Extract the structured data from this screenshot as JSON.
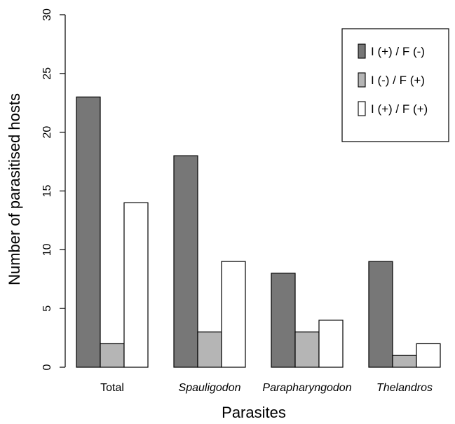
{
  "chart_data": {
    "type": "bar",
    "title": "",
    "xlabel": "Parasites",
    "ylabel": "Number of parasitised hosts",
    "ylim": [
      0,
      30
    ],
    "yticks": [
      0,
      5,
      10,
      15,
      20,
      25,
      30
    ],
    "categories": [
      "Total",
      "Spauligodon",
      "Parapharyngodon",
      "Thelandros"
    ],
    "category_italic": [
      false,
      true,
      true,
      true
    ],
    "series": [
      {
        "name": "I (+) / F (-)",
        "values": [
          23,
          18,
          8,
          9
        ],
        "color": "#777777"
      },
      {
        "name": "I (-) / F (+)",
        "values": [
          2,
          3,
          3,
          1
        ],
        "color": "#b5b5b5"
      },
      {
        "name": "I (+) / F (+)",
        "values": [
          14,
          9,
          4,
          2
        ],
        "color": "#ffffff"
      }
    ],
    "legend_position": "top-right",
    "grid": false
  }
}
